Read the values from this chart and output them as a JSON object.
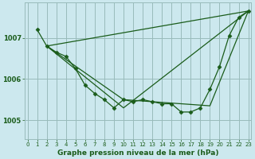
{
  "title": "Graphe pression niveau de la mer (hPa)",
  "background_color": "#cce8ee",
  "grid_color": "#99bbbb",
  "line_color": "#1a5c1a",
  "xlim": [
    -0.3,
    23.3
  ],
  "ylim": [
    1004.55,
    1007.85
  ],
  "xticks": [
    0,
    1,
    2,
    3,
    4,
    5,
    6,
    7,
    8,
    9,
    10,
    11,
    12,
    13,
    14,
    15,
    16,
    17,
    18,
    19,
    20,
    21,
    22,
    23
  ],
  "yticks": [
    1005,
    1006,
    1007
  ],
  "series": [
    {
      "x": [
        1,
        2,
        3,
        4,
        5,
        6,
        7,
        8,
        9,
        10,
        11,
        12,
        13,
        14,
        15,
        16,
        17,
        18,
        19,
        20,
        21,
        22,
        23
      ],
      "y": [
        1007.2,
        1006.8,
        1006.65,
        1006.55,
        1006.25,
        1005.85,
        1005.65,
        1005.5,
        1005.3,
        1005.5,
        1005.45,
        1005.5,
        1005.45,
        1005.4,
        1005.4,
        1005.2,
        1005.2,
        1005.3,
        1005.75,
        1006.3,
        1007.05,
        1007.5,
        1007.65
      ],
      "has_markers": true
    },
    {
      "x": [
        2,
        23
      ],
      "y": [
        1006.8,
        1007.65
      ],
      "has_markers": false
    },
    {
      "x": [
        2,
        10,
        19,
        23
      ],
      "y": [
        1006.8,
        1005.5,
        1005.35,
        1007.65
      ],
      "has_markers": false
    },
    {
      "x": [
        2,
        10,
        23
      ],
      "y": [
        1006.8,
        1005.3,
        1007.65
      ],
      "has_markers": false
    }
  ],
  "marker": "D",
  "markersize": 2.5,
  "linewidth": 0.9
}
